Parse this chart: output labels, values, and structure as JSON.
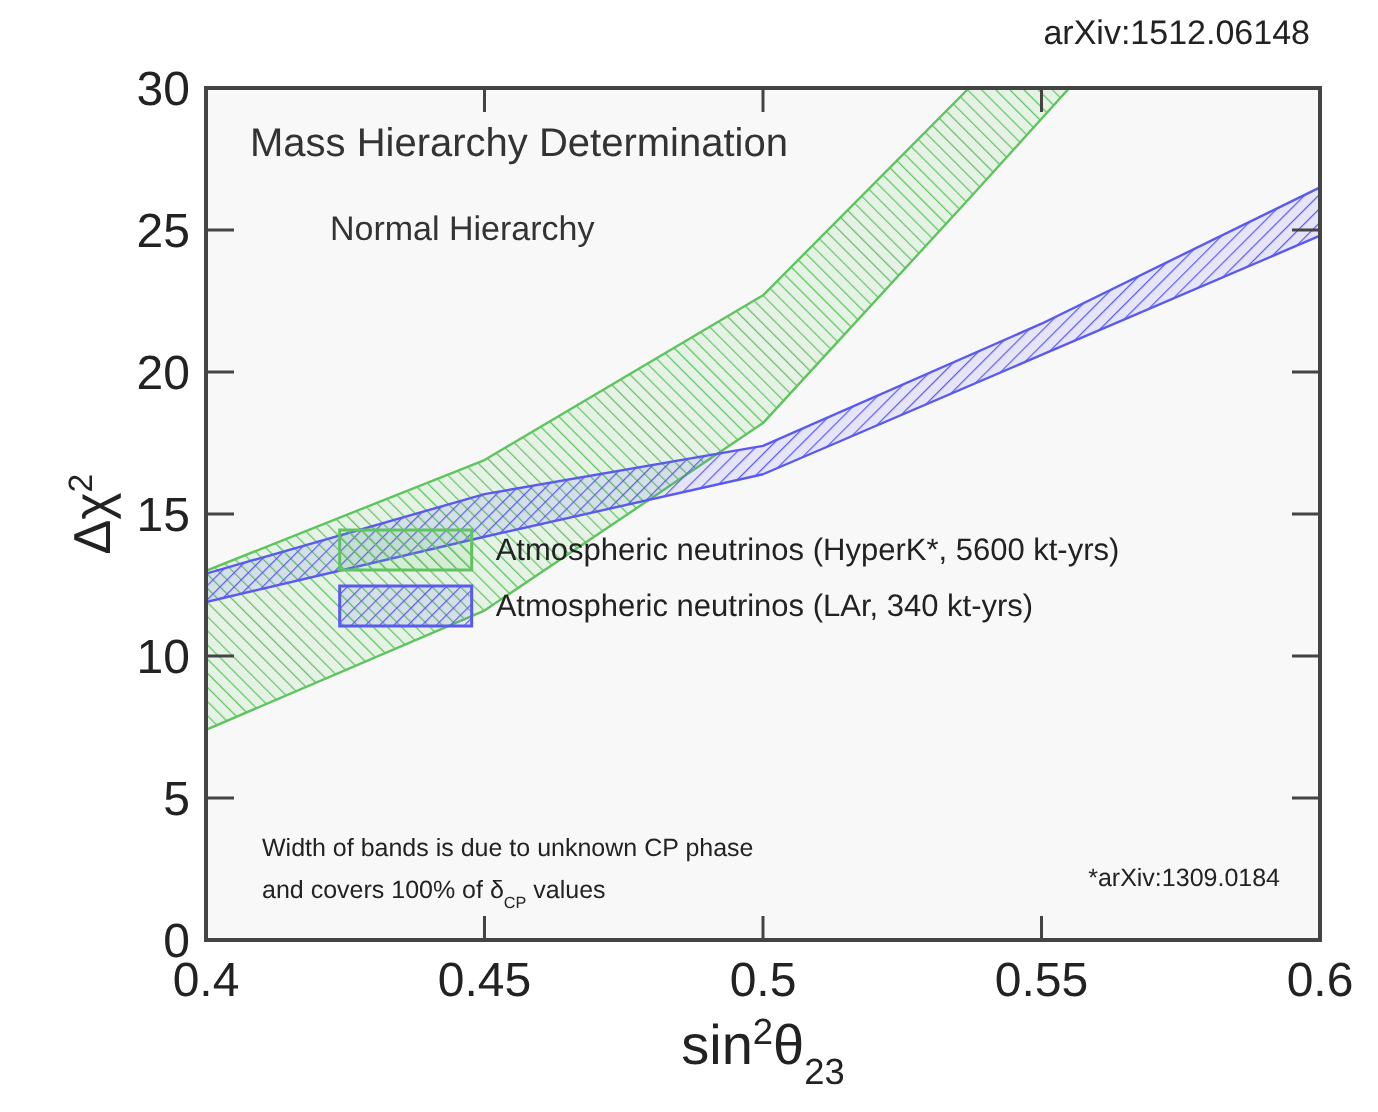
{
  "chart_data": {
    "type": "area",
    "title": "Mass Hierarchy Determination",
    "subtitle": "Normal Hierarchy",
    "xlabel": "sin$^{2}$θ$_{23}$",
    "ylabel": "Δχ$^{2}$",
    "annotations": [
      "Width of bands is due to unknown CP phase",
      "and covers 100% of δ$_{CP}$ values",
      "*arXiv:1309.0184",
      "arXiv:1512.06148"
    ],
    "series": [
      {
        "name": "Atmospheric neutrinos (HyperK*, 5600 kt-yrs)",
        "color": "#5fc45f",
        "x": [
          0.4,
          0.45,
          0.5,
          0.537,
          0.555
        ],
        "values": [
          null,
          null,
          null,
          null,
          null
        ],
        "upper": [
          13.0,
          16.9,
          22.7,
          30,
          30
        ],
        "lower": [
          7.4,
          11.6,
          18.2,
          26.1,
          30
        ]
      },
      {
        "name": "Atmospheric neutrinos (LAr, 340 kt-yrs)",
        "color": "#5a5af0",
        "x": [
          0.4,
          0.45,
          0.5,
          0.55,
          0.6
        ],
        "values": [
          null,
          null,
          null,
          null,
          null
        ],
        "upper": [
          12.9,
          15.7,
          17.4,
          21.7,
          26.5
        ],
        "lower": [
          11.9,
          14.2,
          16.4,
          20.6,
          24.8
        ]
      }
    ],
    "xlim": [
      0.4,
      0.6
    ],
    "xticks": [
      0.4,
      0.45,
      0.5,
      0.55,
      0.6
    ],
    "ylim": [
      0,
      30
    ],
    "yticks": [
      0,
      5,
      10,
      15,
      20,
      25,
      30
    ],
    "grid": false,
    "legend": "bottom"
  }
}
